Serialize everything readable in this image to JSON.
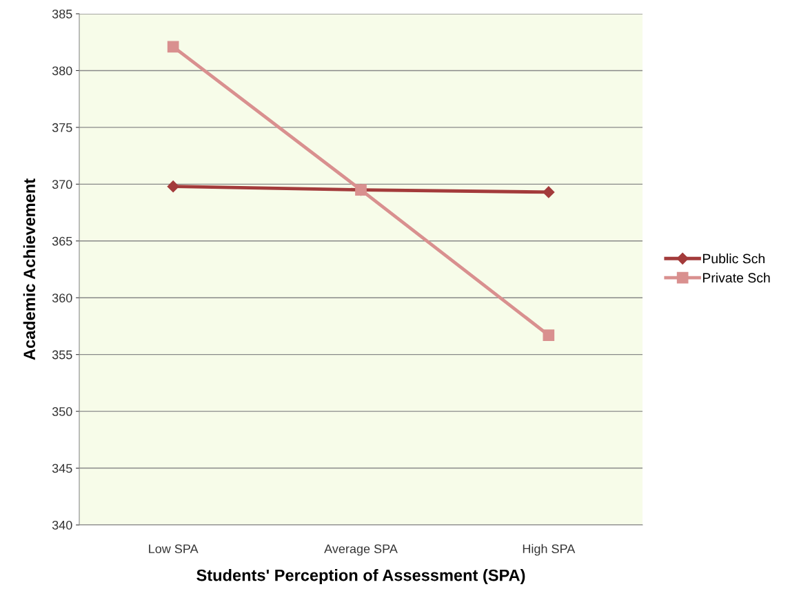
{
  "chart_data": {
    "type": "line",
    "xlabel": "Students' Perception of Assessment (SPA)",
    "ylabel": "Academic Achievement",
    "categories": [
      "Low SPA",
      "Average SPA",
      "High SPA"
    ],
    "series": [
      {
        "name": "Public Sch",
        "color": "#a33b3b",
        "marker": "diamond",
        "values": [
          369.8,
          369.5,
          369.3
        ]
      },
      {
        "name": "Private Sch",
        "color": "#d9908f",
        "marker": "square",
        "values": [
          382.1,
          369.5,
          356.7
        ]
      }
    ],
    "ylim": [
      340,
      385
    ],
    "yticks": [
      340,
      345,
      350,
      355,
      360,
      365,
      370,
      375,
      380,
      385
    ],
    "grid": "y",
    "legend": "right",
    "line_style": "solid"
  }
}
